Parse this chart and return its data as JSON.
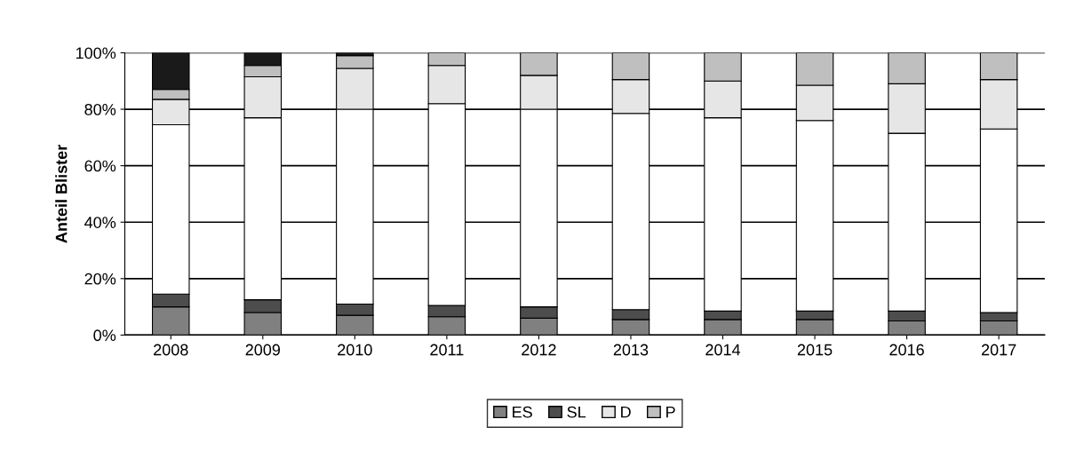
{
  "chart_data": {
    "type": "bar",
    "stacked": true,
    "ylabel": "Anteil Blister",
    "categories": [
      "2008",
      "2009",
      "2010",
      "2011",
      "2012",
      "2013",
      "2014",
      "2015",
      "2016",
      "2017"
    ],
    "series": [
      {
        "name": "ES",
        "color": "#808080",
        "values": [
          10,
          8,
          7,
          6.5,
          6,
          5.5,
          5.5,
          5.5,
          5,
          5
        ]
      },
      {
        "name": "SL",
        "color": "#4d4d4d",
        "values": [
          4.5,
          4.5,
          4,
          4,
          4,
          3.5,
          3,
          3,
          3.5,
          3
        ]
      },
      {
        "color": "#ffffff",
        "values": [
          60,
          64.5,
          69,
          71.5,
          70,
          69.5,
          68.5,
          67.5,
          63,
          65
        ]
      },
      {
        "name": "D",
        "color": "#e6e6e6",
        "values": [
          9,
          14.5,
          14.5,
          13.5,
          12,
          12,
          13,
          12.5,
          17.5,
          17.5
        ]
      },
      {
        "name": "P",
        "color": "#bfbfbf",
        "values": [
          3.5,
          4,
          4.5,
          4.5,
          8,
          9.5,
          10,
          11.5,
          11,
          9.5
        ]
      },
      {
        "color": "#1a1a1a",
        "values": [
          13,
          4.5,
          1,
          null,
          null,
          null,
          null,
          null,
          null,
          null
        ]
      }
    ],
    "ylim": [
      0,
      100
    ],
    "yticks": [
      {
        "value": 0,
        "label": "0%"
      },
      {
        "value": 20,
        "label": "20%"
      },
      {
        "value": 40,
        "label": "40%"
      },
      {
        "value": 60,
        "label": "60%"
      },
      {
        "value": 80,
        "label": "80%"
      },
      {
        "value": 100,
        "label": "100%"
      }
    ],
    "grid": "y",
    "legend": "bottom"
  }
}
